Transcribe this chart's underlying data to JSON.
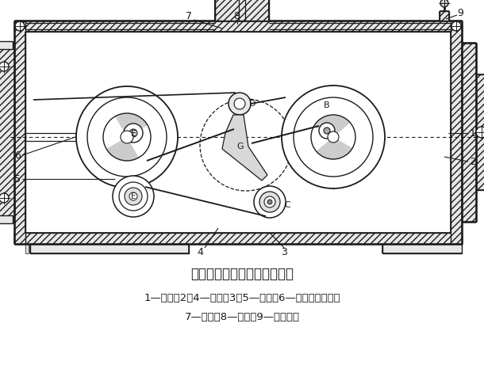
{
  "title": "四相并列连杆脉动无级变速器",
  "caption_line1": "1—曲柄；2、4—连杆；3、5—摇杆；6—超越离合器轴；",
  "caption_line2": "7—蜗轮；8—蜗杆；9—调速手轮",
  "bg_color": "#ffffff",
  "line_color": "#1a1a1a"
}
